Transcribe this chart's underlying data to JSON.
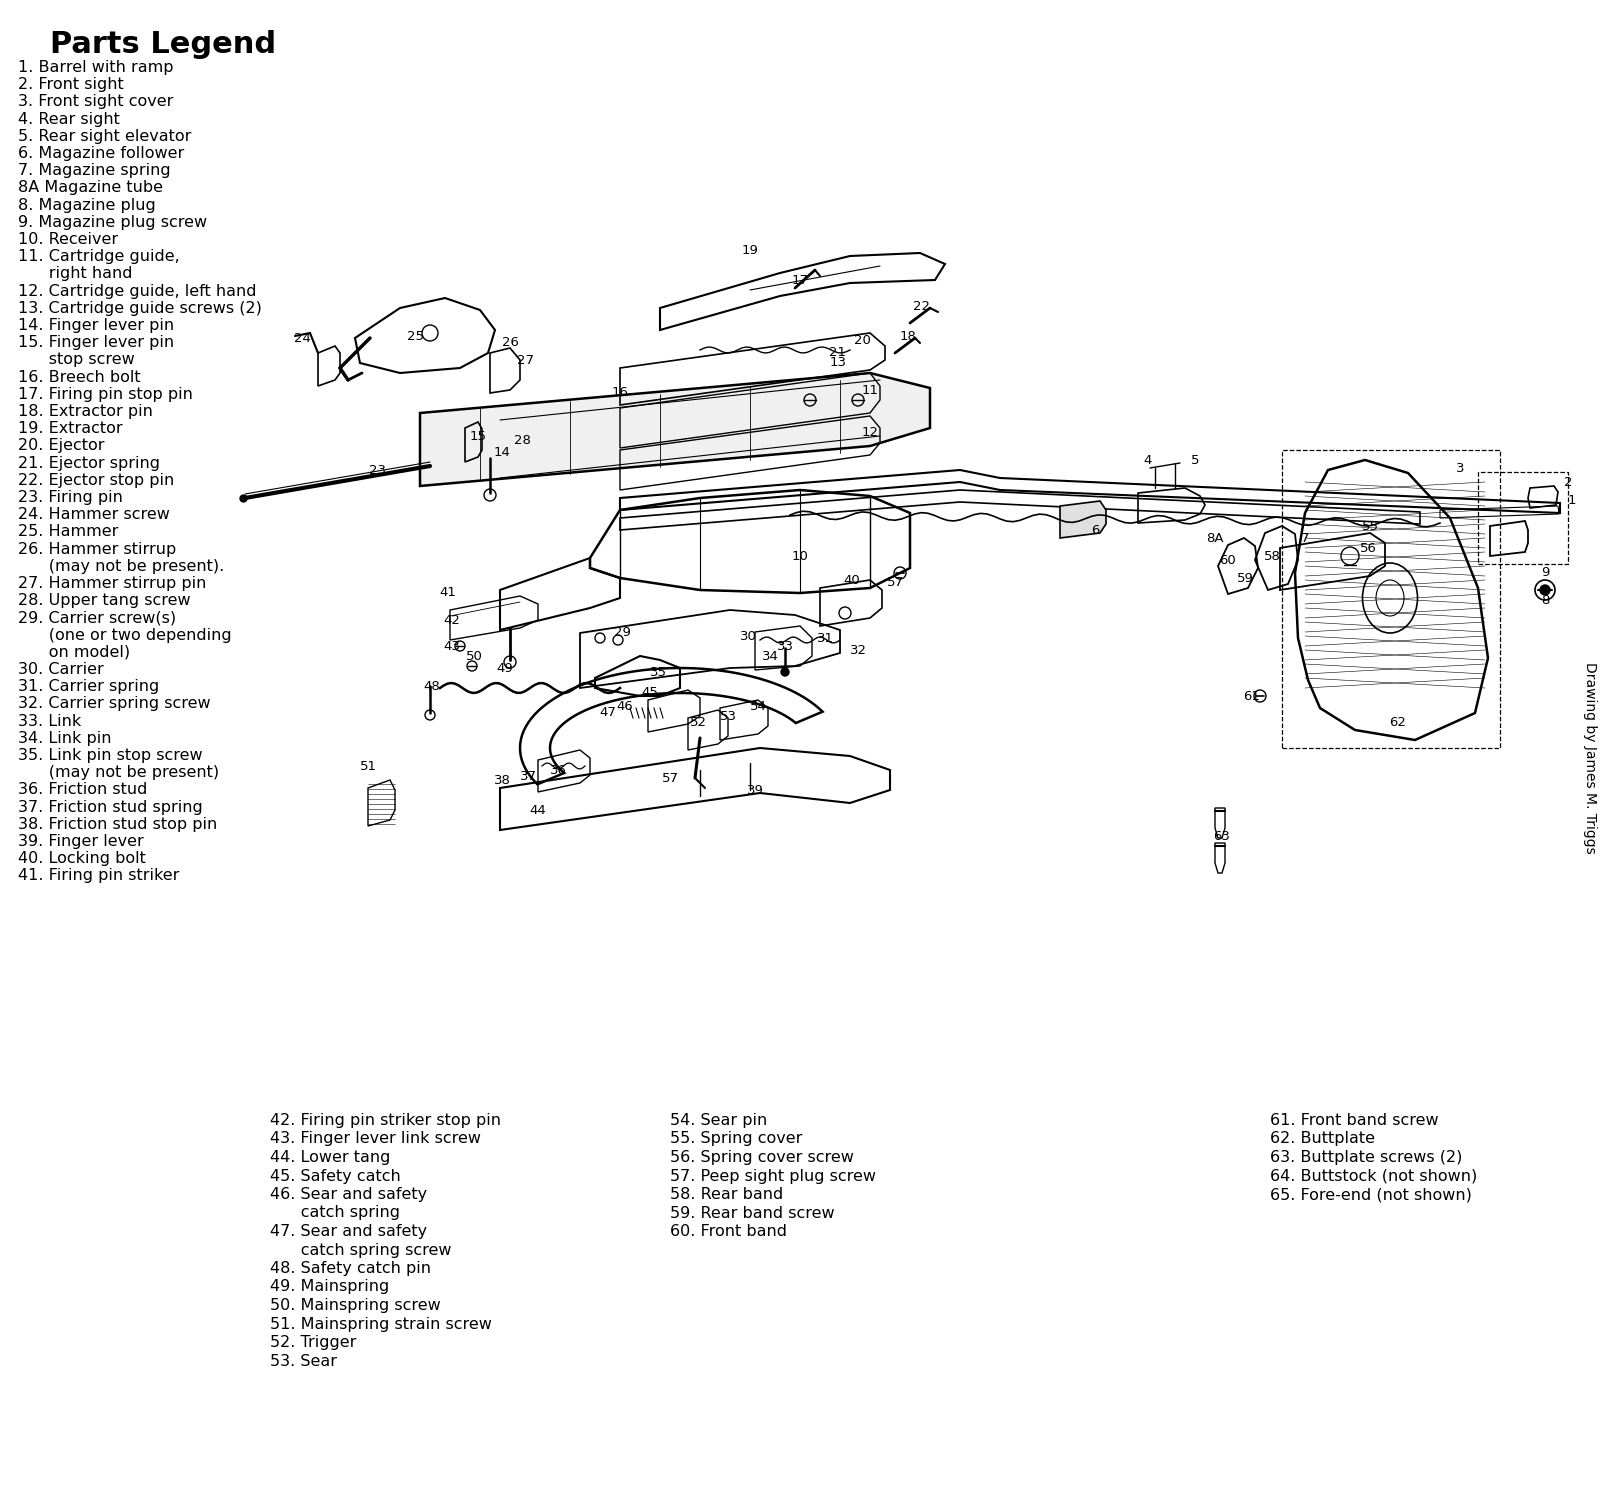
{
  "title": "Parts Legend",
  "background_color": "#ffffff",
  "text_color": "#000000",
  "attribution": "Drawing by James M. Triggs",
  "title_fontsize": 22,
  "legend_fontsize": 11.5,
  "col1_items": [
    "1. Barrel with ramp",
    "2. Front sight",
    "3. Front sight cover",
    "4. Rear sight",
    "5. Rear sight elevator",
    "6. Magazine follower",
    "7. Magazine spring",
    "8A Magazine tube",
    "8. Magazine plug",
    "9. Magazine plug screw",
    "10. Receiver",
    "11. Cartridge guide,",
    "      right hand",
    "12. Cartridge guide, left hand",
    "13. Cartridge guide screws (2)",
    "14. Finger lever pin",
    "15. Finger lever pin",
    "      stop screw",
    "16. Breech bolt",
    "17. Firing pin stop pin",
    "18. Extractor pin",
    "19. Extractor",
    "20. Ejector",
    "21. Ejector spring",
    "22. Ejector stop pin",
    "23. Firing pin",
    "24. Hammer screw",
    "25. Hammer",
    "26. Hammer stirrup",
    "      (may not be present).",
    "27. Hammer stirrup pin",
    "28. Upper tang screw",
    "29. Carrier screw(s)",
    "      (one or two depending",
    "      on model)",
    "30. Carrier",
    "31. Carrier spring",
    "32. Carrier spring screw",
    "33. Link",
    "34. Link pin",
    "35. Link pin stop screw",
    "      (may not be present)",
    "36. Friction stud",
    "37. Friction stud spring",
    "38. Friction stud stop pin",
    "39. Finger lever",
    "40. Locking bolt",
    "41. Firing pin striker"
  ],
  "col2_items": [
    "42. Firing pin striker stop pin",
    "43. Finger lever link screw",
    "44. Lower tang",
    "45. Safety catch",
    "46. Sear and safety",
    "      catch spring",
    "47. Sear and safety",
    "      catch spring screw",
    "48. Safety catch pin",
    "49. Mainspring",
    "50. Mainspring screw",
    "51. Mainspring strain screw",
    "52. Trigger",
    "53. Sear"
  ],
  "col3_items": [
    "54. Sear pin",
    "55. Spring cover",
    "56. Spring cover screw",
    "57. Peep sight plug screw",
    "58. Rear band",
    "59. Rear band screw",
    "60. Front band"
  ],
  "col4_items": [
    "61. Front band screw",
    "62. Buttplate",
    "63. Buttplate screws (2)",
    "64. Buttstock (not shown)",
    "65. Fore-end (not shown)"
  ]
}
